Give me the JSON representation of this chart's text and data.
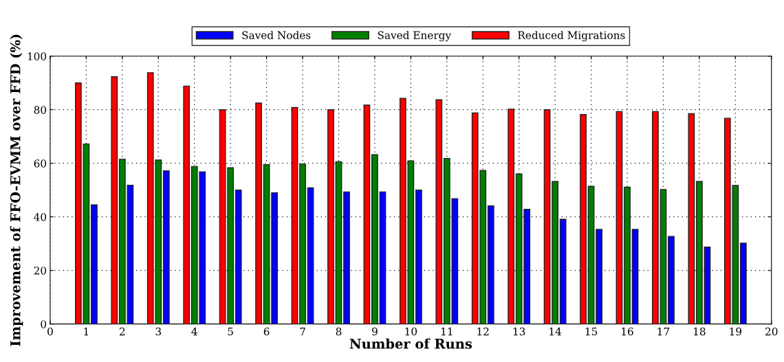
{
  "chart_data": {
    "type": "bar",
    "xlabel": "Number of Runs",
    "ylabel": "Improvement of FFO-EVMM over FFD (%)",
    "x": [
      1,
      2,
      3,
      4,
      5,
      6,
      7,
      8,
      9,
      10,
      11,
      12,
      13,
      14,
      15,
      16,
      17,
      18,
      19
    ],
    "series": [
      {
        "name": "Saved Nodes",
        "color": "#0000ff",
        "values": [
          44.5,
          51.8,
          57.2,
          56.8,
          50,
          49,
          50.8,
          49.3,
          49.3,
          50,
          46.8,
          44.1,
          42.8,
          39.1,
          35.3,
          35.3,
          32.7,
          28.7,
          30.2
        ]
      },
      {
        "name": "Saved Energy",
        "color": "#008000",
        "values": [
          67.2,
          61.5,
          61.2,
          58.8,
          58.3,
          59.5,
          59.7,
          60.6,
          63.2,
          60.9,
          61.8,
          57.3,
          56,
          53.2,
          51.4,
          51.1,
          50.2,
          53.2,
          51.7
        ]
      },
      {
        "name": "Reduced Migrations",
        "color": "#ff0000",
        "values": [
          90,
          92.3,
          93.8,
          88.8,
          80,
          82.5,
          80.8,
          80,
          81.7,
          84.2,
          83.7,
          78.8,
          80.2,
          80,
          78.2,
          79.3,
          79.3,
          78.5,
          76.8
        ]
      }
    ],
    "xlim": [
      0,
      20
    ],
    "xticks": [
      0,
      1,
      2,
      3,
      4,
      5,
      6,
      7,
      8,
      9,
      10,
      11,
      12,
      13,
      14,
      15,
      16,
      17,
      18,
      19,
      20
    ],
    "ylim": [
      0,
      100
    ],
    "yticks": [
      0,
      20,
      40,
      60,
      80,
      100
    ],
    "grid": true,
    "legend": "top"
  }
}
